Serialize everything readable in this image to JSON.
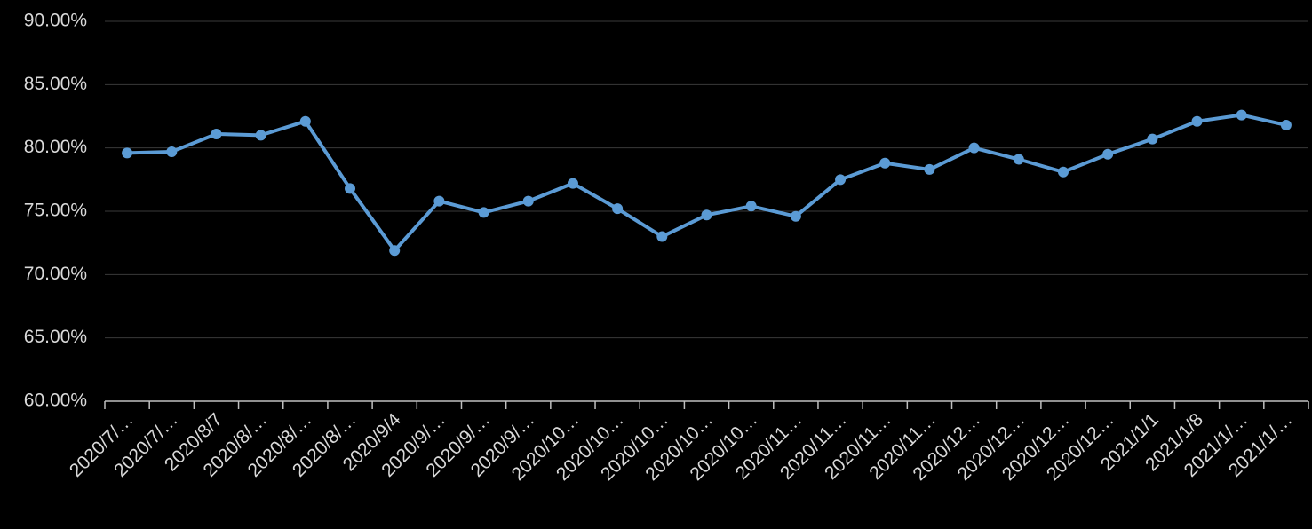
{
  "chart_data": {
    "type": "line",
    "categories": [
      "2020/7/…",
      "2020/7/…",
      "2020/8/7",
      "2020/8/…",
      "2020/8/…",
      "2020/8/…",
      "2020/9/4",
      "2020/9/…",
      "2020/9/…",
      "2020/9/…",
      "2020/10…",
      "2020/10…",
      "2020/10…",
      "2020/10…",
      "2020/10…",
      "2020/11…",
      "2020/11…",
      "2020/11…",
      "2020/11…",
      "2020/12…",
      "2020/12…",
      "2020/12…",
      "2020/12…",
      "2021/1/1",
      "2021/1/8",
      "2021/1/…",
      "2021/1/…"
    ],
    "series": [
      {
        "color": "#5b9bd5",
        "values": [
          79.6,
          79.7,
          81.1,
          81.0,
          82.1,
          76.8,
          71.9,
          75.8,
          74.9,
          75.8,
          77.2,
          75.2,
          73.0,
          74.7,
          75.4,
          74.6,
          77.5,
          78.8,
          78.3,
          80.0,
          79.1,
          78.1,
          79.5,
          80.7,
          82.1,
          82.6,
          81.8
        ]
      }
    ],
    "ylim": [
      60,
      90
    ],
    "yticks": [
      {
        "value": 60,
        "label": "60.00%"
      },
      {
        "value": 65,
        "label": "65.00%"
      },
      {
        "value": 70,
        "label": "70.00%"
      },
      {
        "value": 75,
        "label": "75.00%"
      },
      {
        "value": 80,
        "label": "80.00%"
      },
      {
        "value": 85,
        "label": "85.00%"
      },
      {
        "value": 90,
        "label": "90.00%"
      }
    ],
    "grid": true
  }
}
